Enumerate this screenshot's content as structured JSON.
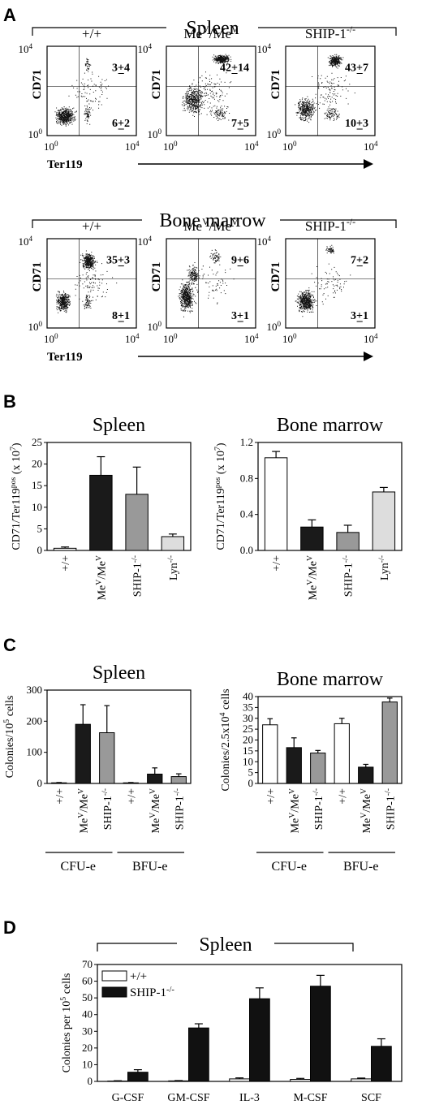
{
  "panels": {
    "A": "A",
    "B": "B",
    "C": "C",
    "D": "D"
  },
  "flow": {
    "tissues": [
      "Spleen",
      "Bone marrow"
    ],
    "genotypes": [
      {
        "main": "+/+",
        "sup": ""
      },
      {
        "main": "Me",
        "sup1": "V",
        "mid": "/Me",
        "sup2": "V"
      },
      {
        "main": "SHIP-1",
        "sup": "-/-"
      }
    ],
    "y_label": "CD71",
    "x_label": "Ter119",
    "tick_low": "10",
    "tick_low_exp": "0",
    "tick_high": "10",
    "tick_high_exp": "4",
    "quadrant_values": {
      "spleen": [
        [
          "3+4",
          "6+2"
        ],
        [
          "42+14",
          "7+5"
        ],
        [
          "43+7",
          "10+3"
        ]
      ],
      "bone_marrow": [
        [
          "35+3",
          "8+1"
        ],
        [
          "9+6",
          "3+1"
        ],
        [
          "7+2",
          "3+1"
        ]
      ]
    }
  },
  "chart_data": [
    {
      "panel": "B",
      "type": "bar",
      "title": "Spleen",
      "ylabel": "CD71/Ter119pos (x 10^7)",
      "categories": [
        "+/+",
        "MeV/MeV",
        "SHIP-1-/-",
        "Lyn-/-"
      ],
      "values": [
        0.5,
        17.4,
        13.0,
        3.2
      ],
      "errors": [
        0.3,
        4.3,
        6.3,
        0.6
      ],
      "colors": [
        "#ffffff",
        "#1a1a1a",
        "#999999",
        "#dddddd"
      ],
      "ylim": [
        0,
        25
      ],
      "yticks": [
        "0",
        "5",
        "10",
        "15",
        "20",
        "25"
      ]
    },
    {
      "panel": "B",
      "type": "bar",
      "title": "Bone marrow",
      "ylabel": "CD71/Ter119pos (x 10^7)",
      "categories": [
        "+/+",
        "MeV/MeV",
        "SHIP-1-/-",
        "Lyn-/-"
      ],
      "values": [
        1.03,
        0.26,
        0.2,
        0.65
      ],
      "errors": [
        0.07,
        0.08,
        0.08,
        0.05
      ],
      "colors": [
        "#ffffff",
        "#1a1a1a",
        "#999999",
        "#dddddd"
      ],
      "ylim": [
        0,
        1.2
      ],
      "yticks": [
        "0.0",
        "0.4",
        "0.8",
        "1.2"
      ]
    },
    {
      "panel": "C",
      "type": "bar",
      "title": "Spleen",
      "ylabel": "Colonies/10^5 cells",
      "categories": [
        "+/+",
        "MeV/MeV",
        "SHIP-1-/-",
        "+/+",
        "MeV/MeV",
        "SHIP-1-/-"
      ],
      "groups": [
        "CFU-e",
        "BFU-e"
      ],
      "values": [
        2,
        190,
        163,
        2,
        30,
        22
      ],
      "errors": [
        1,
        63,
        87,
        1,
        20,
        9
      ],
      "colors": [
        "#ffffff",
        "#1a1a1a",
        "#999999",
        "#ffffff",
        "#1a1a1a",
        "#999999"
      ],
      "ylim": [
        0,
        300
      ],
      "yticks": [
        "0",
        "100",
        "200",
        "300"
      ]
    },
    {
      "panel": "C",
      "type": "bar",
      "title": "Bone marrow",
      "ylabel": "Colonies/2.5x10^4 cells",
      "categories": [
        "+/+",
        "MeV/MeV",
        "SHIP-1-/-",
        "+/+",
        "MeV/MeV",
        "SHIP-1-/-"
      ],
      "groups": [
        "CFU-e",
        "BFU-e"
      ],
      "values": [
        27,
        16.5,
        14,
        27.5,
        7.5,
        37.5
      ],
      "errors": [
        2.8,
        4.5,
        1.2,
        2.5,
        1.3,
        1.8
      ],
      "colors": [
        "#ffffff",
        "#1a1a1a",
        "#999999",
        "#ffffff",
        "#1a1a1a",
        "#999999"
      ],
      "ylim": [
        0,
        40
      ],
      "yticks": [
        "0",
        "5",
        "10",
        "15",
        "20",
        "25",
        "30",
        "35",
        "40"
      ]
    },
    {
      "panel": "D",
      "type": "bar",
      "title": "Spleen",
      "ylabel": "Colonies per 10^5 cells",
      "categories": [
        "G-CSF",
        "GM-CSF",
        "IL-3",
        "M-CSF",
        "SCF"
      ],
      "series": [
        {
          "name": "+/+",
          "values": [
            0.2,
            0.3,
            1.5,
            1.2,
            1.5
          ],
          "errors": [
            0.2,
            0.2,
            0.6,
            0.6,
            0.5
          ],
          "color": "#ffffff"
        },
        {
          "name": "SHIP-1-/-",
          "values": [
            5.5,
            32,
            49.5,
            57,
            21
          ],
          "errors": [
            1.5,
            2.5,
            6.5,
            6.5,
            4.5
          ],
          "color": "#111111"
        }
      ],
      "ylim": [
        0,
        70
      ],
      "yticks": [
        "0",
        "10",
        "20",
        "30",
        "40",
        "50",
        "60",
        "70"
      ]
    }
  ]
}
